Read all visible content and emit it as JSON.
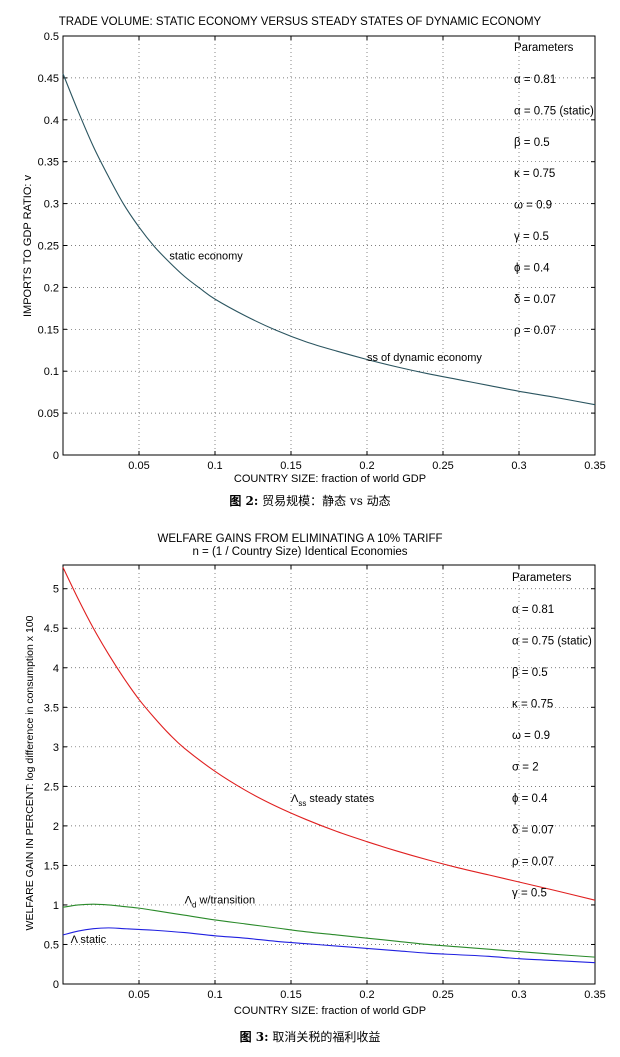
{
  "figures": [
    {
      "caption_label": "图 2:",
      "caption_text": " 贸易规模：静态 vs 动态",
      "params_title": "Parameters",
      "params": [
        "α = 0.81",
        "α = 0.75  (static)",
        "β = 0.5",
        "κ = 0.75",
        "ω = 0.9",
        "γ = 0.5",
        "ϕ = 0.4",
        "δ = 0.07",
        "ρ = 0.07"
      ]
    },
    {
      "caption_label": "图 3:",
      "caption_text": " 取消关税的福利收益",
      "params_title": "Parameters",
      "params": [
        "α = 0.81",
        "α = 0.75  (static)",
        "β = 0.5",
        "κ = 0.75",
        "ω = 0.9",
        "σ = 2",
        "ϕ = 0.4",
        "δ = 0.07",
        "ρ = 0.07",
        "γ = 0.5"
      ]
    }
  ],
  "chart_data": [
    {
      "type": "line",
      "title": "TRADE VOLUME: STATIC ECONOMY VERSUS STEADY STATES OF DYNAMIC ECONOMY",
      "subtitle": "",
      "xlabel": "COUNTRY SIZE: fraction of world GDP",
      "ylabel": "IMPORTS TO GDP RATIO: v",
      "xlim": [
        0,
        0.35
      ],
      "ylim": [
        0,
        0.5
      ],
      "xticks": [
        0.05,
        0.1,
        0.15,
        0.2,
        0.25,
        0.3,
        0.35
      ],
      "xtick_labels": [
        "0.05",
        "0.1",
        "0.15",
        "0.2",
        "0.25",
        "0.3",
        "0.35"
      ],
      "yticks": [
        0,
        0.05,
        0.1,
        0.15,
        0.2,
        0.25,
        0.3,
        0.35,
        0.4,
        0.45,
        0.5
      ],
      "ytick_labels": [
        "0",
        "0.05",
        "0.1",
        "0.15",
        "0.2",
        "0.25",
        "0.3",
        "0.35",
        "0.4",
        "0.45",
        "0.5"
      ],
      "grid": true,
      "series": [
        {
          "color": "#2b5560",
          "x": [
            0,
            0.01,
            0.02,
            0.03,
            0.04,
            0.05,
            0.06,
            0.07,
            0.08,
            0.09,
            0.1,
            0.12,
            0.14,
            0.16,
            0.18,
            0.2,
            0.22,
            0.24,
            0.26,
            0.28,
            0.3,
            0.32,
            0.35
          ],
          "y": [
            0.455,
            0.41,
            0.368,
            0.332,
            0.299,
            0.272,
            0.249,
            0.23,
            0.213,
            0.199,
            0.186,
            0.166,
            0.149,
            0.135,
            0.124,
            0.114,
            0.105,
            0.097,
            0.09,
            0.083,
            0.076,
            0.07,
            0.06
          ]
        }
      ],
      "annotations": [
        {
          "text": "static economy",
          "x": 0.07,
          "y": 0.233
        },
        {
          "text": "ss of dynamic economy",
          "x": 0.2,
          "y": 0.112
        }
      ]
    },
    {
      "type": "line",
      "title": "WELFARE GAINS FROM ELIMINATING A 10% TARIFF",
      "subtitle": "n = (1 / Country Size) Identical Economies",
      "xlabel": "COUNTRY SIZE: fraction of world GDP",
      "ylabel": "WELFARE GAIN IN PERCENT: log difference in consumption x 100",
      "xlim": [
        0,
        0.35
      ],
      "ylim": [
        0,
        5.3
      ],
      "xticks": [
        0.05,
        0.1,
        0.15,
        0.2,
        0.25,
        0.3,
        0.35
      ],
      "xtick_labels": [
        "0.05",
        "0.1",
        "0.15",
        "0.2",
        "0.25",
        "0.3",
        "0.35"
      ],
      "yticks": [
        0,
        0.5,
        1,
        1.5,
        2,
        2.5,
        3,
        3.5,
        4,
        4.5,
        5
      ],
      "ytick_labels": [
        "0",
        "0.5",
        "1",
        "1.5",
        "2",
        "2.5",
        "3",
        "3.5",
        "4",
        "4.5",
        "5"
      ],
      "grid": true,
      "series": [
        {
          "color": "#e02020",
          "x": [
            0,
            0.01,
            0.02,
            0.03,
            0.04,
            0.05,
            0.06,
            0.07,
            0.08,
            0.1,
            0.12,
            0.14,
            0.16,
            0.18,
            0.2,
            0.22,
            0.24,
            0.26,
            0.28,
            0.3,
            0.32,
            0.35
          ],
          "y": [
            5.27,
            4.87,
            4.5,
            4.17,
            3.87,
            3.6,
            3.37,
            3.16,
            2.98,
            2.69,
            2.45,
            2.25,
            2.08,
            1.93,
            1.8,
            1.68,
            1.57,
            1.47,
            1.38,
            1.29,
            1.2,
            1.06
          ]
        },
        {
          "color": "#2a8a2a",
          "x": [
            0,
            0.01,
            0.02,
            0.03,
            0.04,
            0.05,
            0.06,
            0.08,
            0.1,
            0.12,
            0.14,
            0.16,
            0.18,
            0.2,
            0.22,
            0.24,
            0.26,
            0.28,
            0.3,
            0.32,
            0.35
          ],
          "y": [
            0.97,
            1.0,
            1.01,
            1.0,
            0.98,
            0.96,
            0.93,
            0.87,
            0.81,
            0.76,
            0.71,
            0.66,
            0.62,
            0.58,
            0.54,
            0.5,
            0.47,
            0.44,
            0.41,
            0.38,
            0.34
          ]
        },
        {
          "color": "#2020e0",
          "x": [
            0,
            0.01,
            0.02,
            0.03,
            0.04,
            0.05,
            0.06,
            0.08,
            0.1,
            0.12,
            0.14,
            0.16,
            0.18,
            0.2,
            0.22,
            0.24,
            0.26,
            0.28,
            0.3,
            0.32,
            0.35
          ],
          "y": [
            0.62,
            0.67,
            0.7,
            0.71,
            0.7,
            0.69,
            0.68,
            0.65,
            0.61,
            0.58,
            0.54,
            0.51,
            0.48,
            0.45,
            0.42,
            0.39,
            0.37,
            0.35,
            0.32,
            0.3,
            0.27
          ]
        }
      ],
      "annotations": [
        {
          "text": "Λss steady states",
          "x": 0.15,
          "y": 2.3
        },
        {
          "text": "Λd w/transition",
          "x": 0.08,
          "y": 1.02
        },
        {
          "text": "Λ static",
          "x": 0.005,
          "y": 0.52
        }
      ]
    }
  ]
}
